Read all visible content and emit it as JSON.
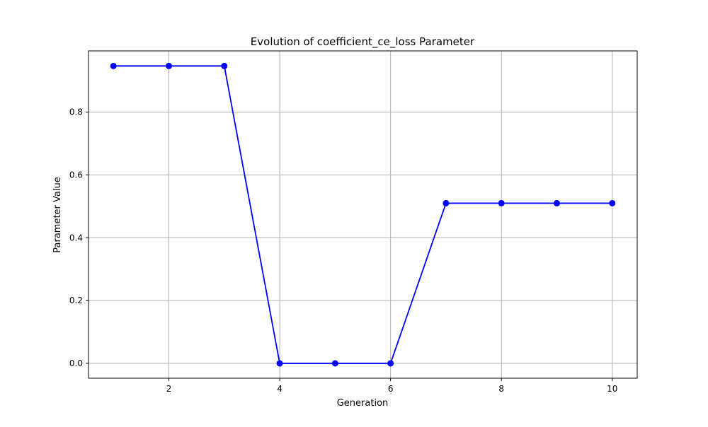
{
  "chart_data": {
    "type": "line",
    "title": "Evolution of coefficient_ce_loss Parameter",
    "xlabel": "Generation",
    "ylabel": "Parameter Value",
    "x": [
      1,
      2,
      3,
      4,
      5,
      6,
      7,
      8,
      9,
      10
    ],
    "series": [
      {
        "values": [
          0.947,
          0.947,
          0.947,
          0.0,
          0.0,
          0.0,
          0.51,
          0.51,
          0.51,
          0.51
        ],
        "color": "#0000ff",
        "marker": "circle"
      }
    ],
    "xlim": [
      0.55,
      10.45
    ],
    "ylim": [
      -0.0474,
      0.995
    ],
    "xticks": [
      2,
      4,
      6,
      8,
      10
    ],
    "yticks": [
      0.0,
      0.2,
      0.4,
      0.6,
      0.8
    ],
    "xtick_labels": [
      "2",
      "4",
      "6",
      "8",
      "10"
    ],
    "ytick_labels": [
      "0.0",
      "0.2",
      "0.4",
      "0.6",
      "0.8"
    ],
    "grid": true,
    "grid_color": "#b0b0b0"
  }
}
